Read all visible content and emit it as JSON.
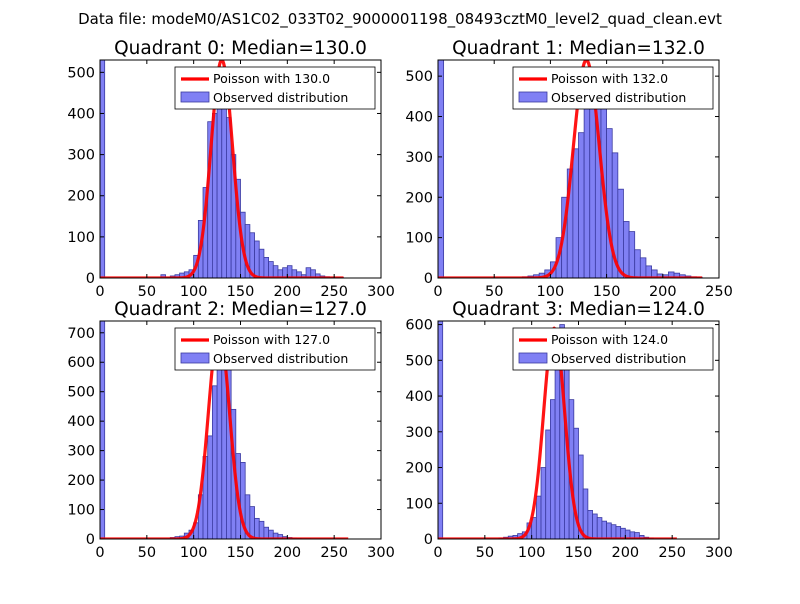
{
  "figure": {
    "suptitle": "Data file: modeM0/AS1C02_033T02_9000001198_08493cztM0_level2_quad_clean.evt"
  },
  "colors": {
    "bar_fill": "#8080f4",
    "bar_edge": "#3a3aa0",
    "poisson_line": "#ff0000",
    "axes": "#000000"
  },
  "chart_data": [
    {
      "type": "bar",
      "title": "Quadrant 0: Median=130.0",
      "median": 130.0,
      "xlim": [
        0,
        300
      ],
      "ylim": [
        0,
        530
      ],
      "xticks": [
        0,
        50,
        100,
        150,
        200,
        250,
        300
      ],
      "yticks": [
        0,
        100,
        200,
        300,
        400,
        500
      ],
      "bin_width": 5,
      "hist": {
        "x": [
          0,
          65,
          70,
          75,
          80,
          85,
          90,
          95,
          100,
          105,
          110,
          115,
          120,
          125,
          130,
          135,
          140,
          145,
          150,
          155,
          160,
          165,
          170,
          175,
          180,
          185,
          190,
          195,
          200,
          205,
          210,
          215,
          220,
          225,
          230,
          235,
          240,
          245,
          250,
          255
        ],
        "y": [
          530,
          8,
          2,
          5,
          8,
          12,
          15,
          20,
          55,
          140,
          220,
          380,
          400,
          500,
          510,
          390,
          300,
          240,
          160,
          130,
          110,
          90,
          70,
          50,
          40,
          30,
          20,
          25,
          30,
          20,
          15,
          8,
          25,
          20,
          10,
          5,
          3,
          2,
          1,
          1
        ]
      },
      "poisson": {
        "mean": 130.0,
        "peak": 530,
        "x_range": [
          0,
          260
        ]
      },
      "legend": {
        "line_label": "Poisson with 130.0",
        "bar_label": "Observed distribution",
        "placement": "upper-right"
      }
    },
    {
      "type": "bar",
      "title": "Quadrant 1: Median=132.0",
      "median": 132.0,
      "xlim": [
        0,
        250
      ],
      "ylim": [
        0,
        540
      ],
      "xticks": [
        0,
        50,
        100,
        150,
        200,
        250
      ],
      "yticks": [
        0,
        100,
        200,
        300,
        400,
        500
      ],
      "bin_width": 5,
      "hist": {
        "x": [
          0,
          75,
          80,
          85,
          90,
          95,
          100,
          105,
          110,
          115,
          120,
          125,
          130,
          135,
          140,
          145,
          150,
          155,
          160,
          165,
          170,
          175,
          180,
          185,
          190,
          195,
          200,
          205,
          210,
          215,
          220,
          225,
          230
        ],
        "y": [
          540,
          3,
          5,
          8,
          12,
          20,
          40,
          100,
          200,
          270,
          320,
          360,
          500,
          510,
          420,
          460,
          370,
          310,
          220,
          140,
          115,
          70,
          50,
          30,
          20,
          10,
          8,
          15,
          12,
          8,
          5,
          3,
          2
        ]
      },
      "poisson": {
        "mean": 132.0,
        "peak": 540,
        "x_range": [
          0,
          235
        ]
      },
      "legend": {
        "line_label": "Poisson with 132.0",
        "bar_label": "Observed distribution",
        "placement": "upper-right"
      }
    },
    {
      "type": "bar",
      "title": "Quadrant 2: Median=127.0",
      "median": 127.0,
      "xlim": [
        0,
        300
      ],
      "ylim": [
        0,
        740
      ],
      "xticks": [
        0,
        50,
        100,
        150,
        200,
        250,
        300
      ],
      "yticks": [
        0,
        100,
        200,
        300,
        400,
        500,
        600,
        700
      ],
      "bin_width": 5,
      "hist": {
        "x": [
          0,
          75,
          80,
          85,
          90,
          95,
          100,
          105,
          110,
          115,
          120,
          125,
          130,
          135,
          140,
          145,
          150,
          155,
          160,
          165,
          170,
          175,
          180,
          185,
          190,
          195,
          200,
          205,
          210,
          215,
          220
        ],
        "y": [
          740,
          5,
          8,
          10,
          20,
          30,
          55,
          150,
          280,
          350,
          520,
          680,
          660,
          580,
          440,
          290,
          260,
          150,
          110,
          70,
          60,
          40,
          30,
          20,
          15,
          8,
          5,
          3,
          2,
          1,
          1
        ]
      },
      "poisson": {
        "mean": 127.0,
        "peak": 710,
        "x_range": [
          0,
          265
        ]
      },
      "legend": {
        "line_label": "Poisson with 127.0",
        "bar_label": "Observed distribution",
        "placement": "upper-right"
      }
    },
    {
      "type": "bar",
      "title": "Quadrant 3: Median=124.0",
      "median": 124.0,
      "xlim": [
        0,
        300
      ],
      "ylim": [
        0,
        610
      ],
      "xticks": [
        0,
        50,
        100,
        150,
        200,
        250,
        300
      ],
      "yticks": [
        0,
        100,
        200,
        300,
        400,
        500,
        600
      ],
      "bin_width": 5,
      "hist": {
        "x": [
          0,
          65,
          70,
          75,
          80,
          85,
          90,
          95,
          100,
          105,
          110,
          115,
          120,
          125,
          130,
          135,
          140,
          145,
          150,
          155,
          160,
          165,
          170,
          175,
          180,
          185,
          190,
          195,
          200,
          205,
          210,
          215,
          220,
          225
        ],
        "y": [
          610,
          3,
          5,
          8,
          10,
          15,
          20,
          45,
          60,
          120,
          200,
          305,
          390,
          510,
          600,
          560,
          390,
          310,
          235,
          140,
          80,
          70,
          60,
          50,
          45,
          40,
          35,
          30,
          25,
          20,
          18,
          10,
          5,
          3
        ]
      },
      "poisson": {
        "mean": 124.0,
        "peak": 590,
        "x_range": [
          0,
          255
        ]
      },
      "legend": {
        "line_label": "Poisson with 124.0",
        "bar_label": "Observed distribution",
        "placement": "upper-right"
      }
    }
  ]
}
